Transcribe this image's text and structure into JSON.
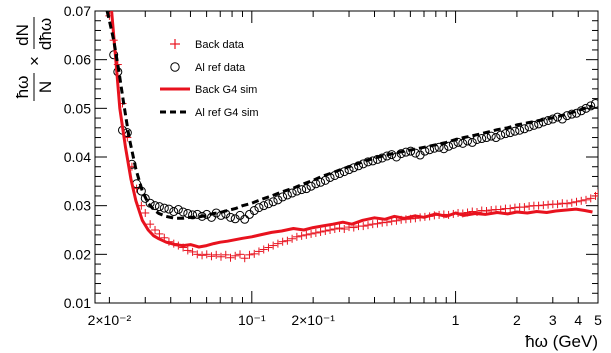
{
  "chart_data": {
    "type": "scatter",
    "xscale": "log",
    "xlim": [
      0.017,
      5.0
    ],
    "ylim": [
      0.01,
      0.07
    ],
    "xlabel": "ħω (GeV)",
    "ylabel_parts": {
      "num": "ħω",
      "den": "N",
      "times": "×",
      "num2": "dN",
      "den2": "dħω"
    },
    "legend_position": "top-left",
    "x_ticks": [
      {
        "value": 0.02,
        "label": "2×10⁻²"
      },
      {
        "value": 0.1,
        "label": "10⁻¹"
      },
      {
        "value": 0.2,
        "label": "2×10⁻¹"
      },
      {
        "value": 1,
        "label": "1"
      },
      {
        "value": 2,
        "label": "2"
      },
      {
        "value": 3,
        "label": "3"
      },
      {
        "value": 4,
        "label": "4"
      },
      {
        "value": 5,
        "label": "5"
      }
    ],
    "y_ticks": [
      {
        "value": 0.01,
        "label": "0.01"
      },
      {
        "value": 0.02,
        "label": "0.02"
      },
      {
        "value": 0.03,
        "label": "0.03"
      },
      {
        "value": 0.04,
        "label": "0.04"
      },
      {
        "value": 0.05,
        "label": "0.05"
      },
      {
        "value": 0.06,
        "label": "0.06"
      },
      {
        "value": 0.07,
        "label": "0.07"
      }
    ],
    "series": [
      {
        "name": "Back data",
        "style": "cross",
        "color": "#e8121e",
        "x": [
          0.02,
          0.021,
          0.022,
          0.0232,
          0.0245,
          0.0258,
          0.0272,
          0.0287,
          0.03,
          0.0317,
          0.0335,
          0.0352,
          0.0372,
          0.0392,
          0.0414,
          0.0436,
          0.046,
          0.0485,
          0.0512,
          0.054,
          0.057,
          0.0601,
          0.0634,
          0.0669,
          0.0706,
          0.0745,
          0.0786,
          0.0829,
          0.0875,
          0.0923,
          0.0974,
          0.1028,
          0.1084,
          0.1144,
          0.1207,
          0.1273,
          0.1343,
          0.1417,
          0.1495,
          0.1577,
          0.1664,
          0.1756,
          0.1852,
          0.1954,
          0.2062,
          0.2175,
          0.2295,
          0.2421,
          0.2554,
          0.2695,
          0.2843,
          0.3,
          0.3165,
          0.3339,
          0.3523,
          0.3717,
          0.3921,
          0.4137,
          0.4365,
          0.4605,
          0.4858,
          0.5126,
          0.5408,
          0.5706,
          0.602,
          0.6351,
          0.67,
          0.7069,
          0.7458,
          0.7868,
          0.8301,
          0.8758,
          0.924,
          0.9748,
          1.0284,
          1.085,
          1.1447,
          1.2077,
          1.2741,
          1.3442,
          1.4181,
          1.4961,
          1.5784,
          1.6653,
          1.7569,
          1.8535,
          1.9554,
          2.063,
          2.1765,
          2.2962,
          2.4225,
          2.5557,
          2.6963,
          2.8446,
          3.0011,
          3.1661,
          3.3403,
          3.524,
          3.7178,
          3.9223,
          4.138,
          4.3656,
          4.6057,
          4.859,
          5.0
        ],
        "y": [
          0.069,
          0.064,
          0.059,
          0.051,
          0.044,
          0.038,
          0.0335,
          0.03,
          0.0285,
          0.0262,
          0.025,
          0.0242,
          0.0234,
          0.0226,
          0.0222,
          0.0218,
          0.0214,
          0.0208,
          0.0205,
          0.02,
          0.0198,
          0.02,
          0.0196,
          0.0199,
          0.0195,
          0.0199,
          0.0193,
          0.0197,
          0.02,
          0.0192,
          0.0199,
          0.0201,
          0.0206,
          0.021,
          0.0214,
          0.0218,
          0.0222,
          0.0226,
          0.0228,
          0.0232,
          0.0236,
          0.0238,
          0.024,
          0.0242,
          0.0244,
          0.0246,
          0.0248,
          0.025,
          0.0252,
          0.0254,
          0.0252,
          0.0256,
          0.0255,
          0.0258,
          0.0258,
          0.026,
          0.0262,
          0.0263,
          0.0265,
          0.0266,
          0.0268,
          0.0269,
          0.0271,
          0.0272,
          0.0273,
          0.0274,
          0.0276,
          0.0277,
          0.0278,
          0.028,
          0.0281,
          0.0282,
          0.0281,
          0.0283,
          0.0285,
          0.0284,
          0.0286,
          0.0288,
          0.0287,
          0.029,
          0.0289,
          0.0291,
          0.0292,
          0.0292,
          0.0294,
          0.0294,
          0.0296,
          0.0297,
          0.0297,
          0.0299,
          0.03,
          0.03,
          0.0301,
          0.0302,
          0.0303,
          0.0303,
          0.0305,
          0.0304,
          0.0306,
          0.0308,
          0.031,
          0.0312,
          0.0315,
          0.032,
          0.0325
        ]
      },
      {
        "name": "Al ref data",
        "style": "open-circle",
        "color": "#000000",
        "x": [
          0.021,
          0.022,
          0.0232,
          0.0245,
          0.0258,
          0.0272,
          0.0287,
          0.03,
          0.0317,
          0.0335,
          0.0352,
          0.0372,
          0.0392,
          0.0414,
          0.0436,
          0.046,
          0.0485,
          0.0512,
          0.054,
          0.057,
          0.0601,
          0.0634,
          0.0669,
          0.0706,
          0.0745,
          0.0786,
          0.0829,
          0.0875,
          0.0923,
          0.0974,
          0.1028,
          0.1084,
          0.1144,
          0.1207,
          0.1273,
          0.1343,
          0.1417,
          0.1495,
          0.1577,
          0.1664,
          0.1756,
          0.1852,
          0.1954,
          0.2062,
          0.2175,
          0.2295,
          0.2421,
          0.2554,
          0.2695,
          0.2843,
          0.3,
          0.3165,
          0.3339,
          0.3523,
          0.3717,
          0.3921,
          0.4137,
          0.4365,
          0.4605,
          0.4858,
          0.5126,
          0.5408,
          0.5706,
          0.602,
          0.6351,
          0.67,
          0.7069,
          0.7458,
          0.7868,
          0.8301,
          0.8758,
          0.924,
          0.9748,
          1.0284,
          1.085,
          1.1447,
          1.2077,
          1.2741,
          1.3442,
          1.4181,
          1.4961,
          1.5784,
          1.6653,
          1.7569,
          1.8535,
          1.9554,
          2.063,
          2.1765,
          2.2962,
          2.4225,
          2.5557,
          2.6963,
          2.8446,
          3.0011,
          3.1661,
          3.3403,
          3.524,
          3.7178,
          3.9223,
          4.138,
          4.3656,
          4.6057,
          4.859
        ],
        "y": [
          0.061,
          0.0575,
          0.0455,
          0.045,
          0.0385,
          0.0345,
          0.033,
          0.0315,
          0.0305,
          0.03,
          0.0298,
          0.0295,
          0.0293,
          0.0288,
          0.0292,
          0.0287,
          0.0284,
          0.0281,
          0.0282,
          0.0278,
          0.0282,
          0.0276,
          0.0285,
          0.028,
          0.0283,
          0.0276,
          0.0273,
          0.028,
          0.0272,
          0.0282,
          0.029,
          0.0296,
          0.03,
          0.0304,
          0.0308,
          0.0312,
          0.0318,
          0.0322,
          0.0326,
          0.033,
          0.0333,
          0.0335,
          0.034,
          0.0345,
          0.0348,
          0.0352,
          0.0358,
          0.0362,
          0.0366,
          0.037,
          0.0374,
          0.0378,
          0.0382,
          0.0386,
          0.039,
          0.0392,
          0.0395,
          0.0398,
          0.0402,
          0.0405,
          0.04,
          0.0407,
          0.041,
          0.0412,
          0.0408,
          0.0404,
          0.0412,
          0.0415,
          0.0418,
          0.042,
          0.0417,
          0.0422,
          0.0426,
          0.043,
          0.0428,
          0.0433,
          0.043,
          0.0436,
          0.0438,
          0.044,
          0.0443,
          0.044,
          0.0445,
          0.0448,
          0.045,
          0.0453,
          0.0455,
          0.0458,
          0.0462,
          0.0465,
          0.0468,
          0.0472,
          0.0475,
          0.0478,
          0.0482,
          0.0478,
          0.0485,
          0.0488,
          0.049,
          0.0495,
          0.05,
          0.0505,
          0.051
        ]
      },
      {
        "name": "Back G4 sim",
        "style": "solid-line",
        "color": "#e8121e",
        "x": [
          0.0205,
          0.0215,
          0.0225,
          0.024,
          0.0255,
          0.027,
          0.029,
          0.031,
          0.033,
          0.035,
          0.038,
          0.042,
          0.046,
          0.05,
          0.055,
          0.06,
          0.065,
          0.07,
          0.076,
          0.083,
          0.09,
          0.1,
          0.11,
          0.125,
          0.14,
          0.16,
          0.18,
          0.2,
          0.22,
          0.25,
          0.28,
          0.31,
          0.35,
          0.4,
          0.45,
          0.5,
          0.56,
          0.63,
          0.7,
          0.8,
          0.9,
          1.0,
          1.1,
          1.25,
          1.4,
          1.6,
          1.8,
          2.0,
          2.25,
          2.5,
          2.8,
          3.1,
          3.5,
          3.9,
          4.3,
          4.7
        ],
        "y": [
          0.07,
          0.06,
          0.05,
          0.042,
          0.0355,
          0.031,
          0.027,
          0.025,
          0.0238,
          0.0232,
          0.0225,
          0.022,
          0.0218,
          0.022,
          0.0215,
          0.0218,
          0.0222,
          0.0225,
          0.0227,
          0.023,
          0.0233,
          0.0236,
          0.024,
          0.0245,
          0.0248,
          0.0253,
          0.025,
          0.0255,
          0.0258,
          0.0262,
          0.0266,
          0.0262,
          0.027,
          0.0275,
          0.0272,
          0.0278,
          0.0274,
          0.0279,
          0.0276,
          0.0283,
          0.0278,
          0.0285,
          0.028,
          0.0284,
          0.0282,
          0.0286,
          0.0283,
          0.0287,
          0.0285,
          0.0288,
          0.0286,
          0.0289,
          0.0291,
          0.0293,
          0.029,
          0.0287
        ]
      },
      {
        "name": "Al ref G4 sim",
        "style": "dashed-line",
        "color": "#000000",
        "x": [
          0.0195,
          0.02,
          0.021,
          0.0222,
          0.0235,
          0.025,
          0.027,
          0.029,
          0.031,
          0.033,
          0.035,
          0.038,
          0.042,
          0.046,
          0.05,
          0.055,
          0.06,
          0.065,
          0.07,
          0.076,
          0.083,
          0.09,
          0.1,
          0.11,
          0.125,
          0.14,
          0.16,
          0.18,
          0.2,
          0.22,
          0.25,
          0.28,
          0.31,
          0.35,
          0.4,
          0.45,
          0.5,
          0.56,
          0.63,
          0.7,
          0.8,
          0.9,
          1.0,
          1.1,
          1.25,
          1.4,
          1.6,
          1.8,
          2.0,
          2.25,
          2.5,
          2.8,
          3.1,
          3.5,
          3.9,
          4.3,
          4.7
        ],
        "y": [
          0.07,
          0.068,
          0.064,
          0.058,
          0.051,
          0.044,
          0.0375,
          0.033,
          0.0305,
          0.0292,
          0.0284,
          0.0278,
          0.0274,
          0.0274,
          0.0276,
          0.0277,
          0.028,
          0.0284,
          0.0286,
          0.029,
          0.0294,
          0.03,
          0.0305,
          0.0312,
          0.032,
          0.0328,
          0.0336,
          0.0345,
          0.0352,
          0.036,
          0.0368,
          0.0376,
          0.0382,
          0.039,
          0.0398,
          0.0403,
          0.0408,
          0.0412,
          0.0416,
          0.042,
          0.0425,
          0.043,
          0.0436,
          0.044,
          0.0445,
          0.045,
          0.0456,
          0.046,
          0.0466,
          0.047,
          0.0474,
          0.0478,
          0.0482,
          0.0488,
          0.0494,
          0.05,
          0.0505
        ]
      }
    ]
  }
}
